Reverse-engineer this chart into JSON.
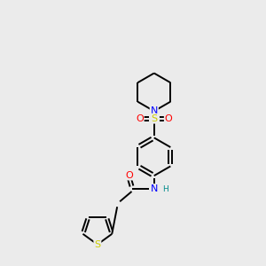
{
  "background_color": "#ebebeb",
  "bond_color": "#000000",
  "atom_colors": {
    "N": "#0000ff",
    "O": "#ff0000",
    "S": "#cccc00",
    "H": "#008b8b",
    "C": "#000000"
  },
  "figsize": [
    3.0,
    3.0
  ],
  "dpi": 100,
  "lw": 1.4,
  "fontsize": 8.0
}
